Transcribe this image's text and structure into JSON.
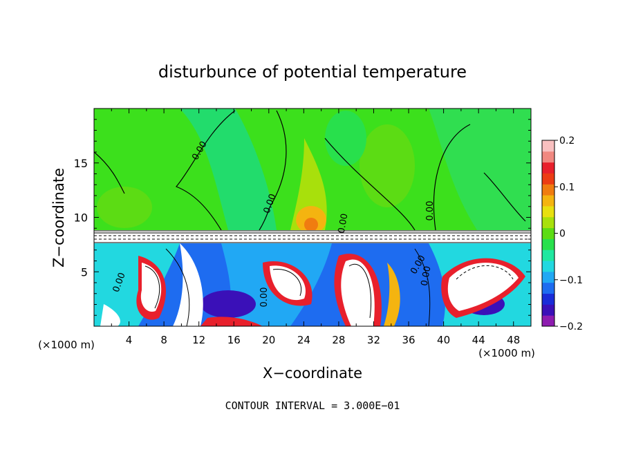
{
  "chart_data": {
    "type": "heatmap",
    "title": "disturbunce of potential temperature",
    "xlabel": "X−coordinate",
    "ylabel": "Z−coordinate",
    "x_unit_left": "(×1000 m)",
    "x_unit_right": "(×1000 m)",
    "xlim": [
      0,
      50
    ],
    "ylim": [
      0,
      20
    ],
    "x_ticks": [
      "4",
      "8",
      "12",
      "16",
      "20",
      "24",
      "28",
      "32",
      "36",
      "40",
      "44",
      "48"
    ],
    "x_tick_values": [
      4,
      8,
      12,
      16,
      20,
      24,
      28,
      32,
      36,
      40,
      44,
      48
    ],
    "y_ticks": [
      "5",
      "10",
      "15"
    ],
    "y_tick_values": [
      5,
      10,
      15
    ],
    "contour_labels": [
      "0.00",
      "0.00",
      "0.00",
      "0.00",
      "0.00",
      "0.00",
      "0.00",
      "0.00"
    ],
    "footer": "CONTOUR INTERVAL = 3.000E−01",
    "colorbar": {
      "range": [
        -0.2,
        0.2
      ],
      "tick_labels": [
        "0.2",
        "0.1",
        "0",
        "−0.1",
        "−0.2"
      ],
      "tick_values": [
        0.2,
        0.1,
        0,
        -0.1,
        -0.2
      ],
      "colors": [
        "#8e1cb0",
        "#3a10b8",
        "#1a2cd8",
        "#1e6cf0",
        "#21a8f4",
        "#22d8e0",
        "#20e8a0",
        "#28e04c",
        "#5cdc14",
        "#a8e00c",
        "#e8e010",
        "#f4b410",
        "#f07c10",
        "#ec3c14",
        "#e8202c",
        "#f08880",
        "#f8c0c0"
      ]
    }
  }
}
